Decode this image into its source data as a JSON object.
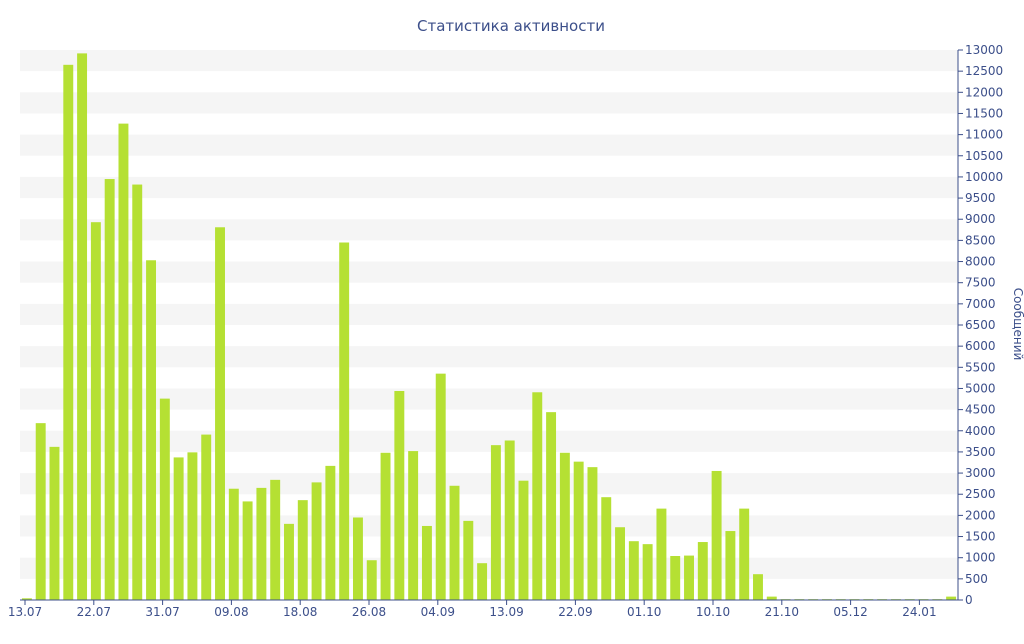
{
  "chart_data": {
    "type": "bar",
    "title": "Статистика активности",
    "ylabel": "Сообщений",
    "ylim": [
      0,
      13000
    ],
    "y_ticks": [
      0,
      500,
      1000,
      1500,
      2000,
      2500,
      3000,
      3500,
      4000,
      4500,
      5000,
      5500,
      6000,
      6500,
      7000,
      7500,
      8000,
      8500,
      9000,
      9500,
      10000,
      10500,
      11000,
      11500,
      12000,
      12500,
      13000
    ],
    "y_axis_side": "right",
    "x_tick_labels": [
      "13.07",
      "22.07",
      "31.07",
      "09.08",
      "18.08",
      "26.08",
      "04.09",
      "13.09",
      "22.09",
      "01.10",
      "10.10",
      "21.10",
      "05.12",
      "24.01"
    ],
    "grid": "horizontal bands",
    "bar_color": "#b5e033",
    "values": [
      40,
      4180,
      3620,
      12650,
      12920,
      8930,
      9950,
      11260,
      9820,
      8030,
      4760,
      3370,
      3490,
      3910,
      8810,
      2630,
      2330,
      2650,
      2840,
      1800,
      2360,
      2780,
      3170,
      8450,
      1950,
      940,
      3480,
      4940,
      3520,
      1750,
      5350,
      2700,
      1870,
      870,
      3660,
      3770,
      2820,
      4910,
      4440,
      3480,
      3270,
      3140,
      2430,
      1720,
      1390,
      1320,
      2160,
      1040,
      1050,
      1370,
      3050,
      1630,
      2160,
      610,
      80,
      20,
      20,
      20,
      20,
      20,
      20,
      20,
      20,
      20,
      20,
      20,
      20,
      80
    ]
  }
}
